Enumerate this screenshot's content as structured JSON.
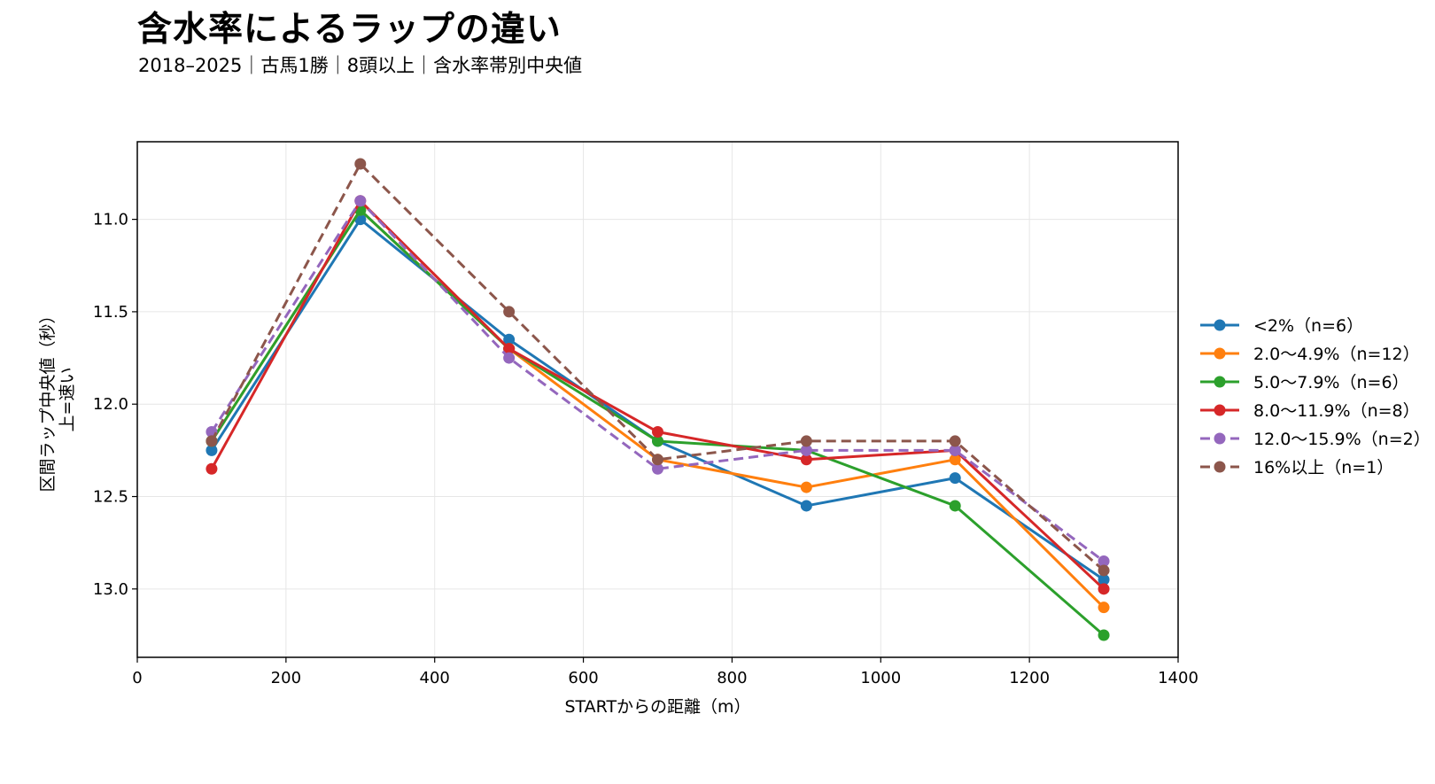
{
  "header": {
    "title": "含水率によるラップの違い",
    "subtitle": "2018–2025｜古馬1勝｜8頭以上｜含水率帯別中央値"
  },
  "chart_data": {
    "type": "line",
    "xlabel": "STARTからの距離（m）",
    "ylabel": [
      "区間ラップ中央値（秒）",
      "上=速い"
    ],
    "xlim": [
      0,
      1400
    ],
    "ylim": [
      13.37,
      10.58
    ],
    "y_inverted": true,
    "xticks": [
      0,
      200,
      400,
      600,
      800,
      1000,
      1200,
      1400
    ],
    "yticks": [
      11.0,
      11.5,
      12.0,
      12.5,
      13.0
    ],
    "ytick_labels": [
      "11.0",
      "11.5",
      "12.0",
      "12.5",
      "13.0"
    ],
    "grid": true,
    "legend_position": "right",
    "x": [
      100,
      300,
      500,
      700,
      900,
      1100,
      1300
    ],
    "series": [
      {
        "name": "<2%（n=6）",
        "color": "#1f77b4",
        "dashed": false,
        "values": [
          12.25,
          11.0,
          11.65,
          12.2,
          12.55,
          12.4,
          12.95
        ]
      },
      {
        "name": "2.0〜4.9%（n=12）",
        "color": "#ff7f0e",
        "dashed": false,
        "values": [
          12.2,
          10.95,
          11.7,
          12.3,
          12.45,
          12.3,
          13.1
        ]
      },
      {
        "name": "5.0〜7.9%（n=6）",
        "color": "#2ca02c",
        "dashed": false,
        "values": [
          12.2,
          10.95,
          11.7,
          12.2,
          12.25,
          12.55,
          13.25
        ]
      },
      {
        "name": "8.0〜11.9%（n=8）",
        "color": "#d62728",
        "dashed": false,
        "values": [
          12.35,
          10.9,
          11.7,
          12.15,
          12.3,
          12.25,
          13.0
        ]
      },
      {
        "name": "12.0〜15.9%（n=2）",
        "color": "#9467bd",
        "dashed": true,
        "values": [
          12.15,
          10.9,
          11.75,
          12.35,
          12.25,
          12.25,
          12.85
        ]
      },
      {
        "name": "16%以上（n=1）",
        "color": "#8c564b",
        "dashed": true,
        "values": [
          12.2,
          10.7,
          11.5,
          12.3,
          12.2,
          12.2,
          12.9
        ]
      }
    ]
  }
}
